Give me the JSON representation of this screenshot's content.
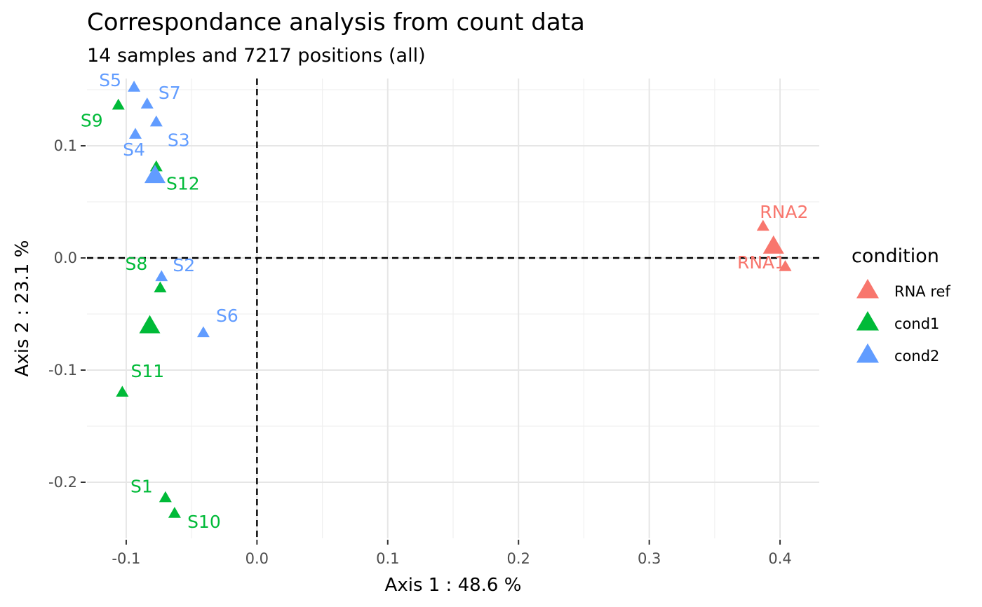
{
  "chart_data": {
    "type": "scatter",
    "title": "Correspondance analysis from count data",
    "subtitle": "14 samples and 7217 positions (all)",
    "xlabel": "Axis 1 : 48.6 %",
    "ylabel": "Axis 2 : 23.1 %",
    "xlim": [
      -0.13,
      0.43
    ],
    "ylim": [
      -0.25,
      0.16
    ],
    "x_ticks": [
      -0.1,
      0.0,
      0.1,
      0.2,
      0.3,
      0.4
    ],
    "x_tick_labels": [
      "-0.1",
      "0.0",
      "0.1",
      "0.2",
      "0.3",
      "0.4"
    ],
    "y_ticks": [
      -0.2,
      -0.1,
      0.0,
      0.1
    ],
    "y_tick_labels": [
      "-0.2",
      "-0.1",
      "0.0",
      "0.1"
    ],
    "grid": true,
    "reference_lines": {
      "x": 0,
      "y": 0,
      "style": "dashed"
    },
    "legend": {
      "title": "condition",
      "position": "right",
      "entries": [
        {
          "name": "RNA ref",
          "color": "#F8766D"
        },
        {
          "name": "cond1",
          "color": "#00BA38"
        },
        {
          "name": "cond2",
          "color": "#619CFF"
        }
      ]
    },
    "series": [
      {
        "name": "RNA ref",
        "color": "#F8766D",
        "points": [
          {
            "label": "RNA2",
            "x": 0.387,
            "y": 0.028
          },
          {
            "label": "RNA1",
            "x": 0.404,
            "y": -0.008
          }
        ],
        "centroid": {
          "x": 0.395,
          "y": 0.01
        }
      },
      {
        "name": "cond1",
        "color": "#00BA38",
        "points": [
          {
            "label": "S9",
            "x": -0.106,
            "y": 0.136
          },
          {
            "label": "S12",
            "x": -0.077,
            "y": 0.081
          },
          {
            "label": "S8",
            "x": -0.074,
            "y": -0.027
          },
          {
            "label": "S11",
            "x": -0.103,
            "y": -0.12
          },
          {
            "label": "S1",
            "x": -0.07,
            "y": -0.214
          },
          {
            "label": "S10",
            "x": -0.063,
            "y": -0.228
          }
        ],
        "centroid": {
          "x": -0.082,
          "y": -0.061
        }
      },
      {
        "name": "cond2",
        "color": "#619CFF",
        "points": [
          {
            "label": "S5",
            "x": -0.094,
            "y": 0.152
          },
          {
            "label": "S7",
            "x": -0.084,
            "y": 0.137
          },
          {
            "label": "S3",
            "x": -0.077,
            "y": 0.121
          },
          {
            "label": "S4",
            "x": -0.093,
            "y": 0.11
          },
          {
            "label": "S2",
            "x": -0.073,
            "y": -0.017
          },
          {
            "label": "S6",
            "x": -0.041,
            "y": -0.067
          }
        ],
        "centroid": {
          "x": -0.078,
          "y": 0.073
        }
      }
    ]
  }
}
